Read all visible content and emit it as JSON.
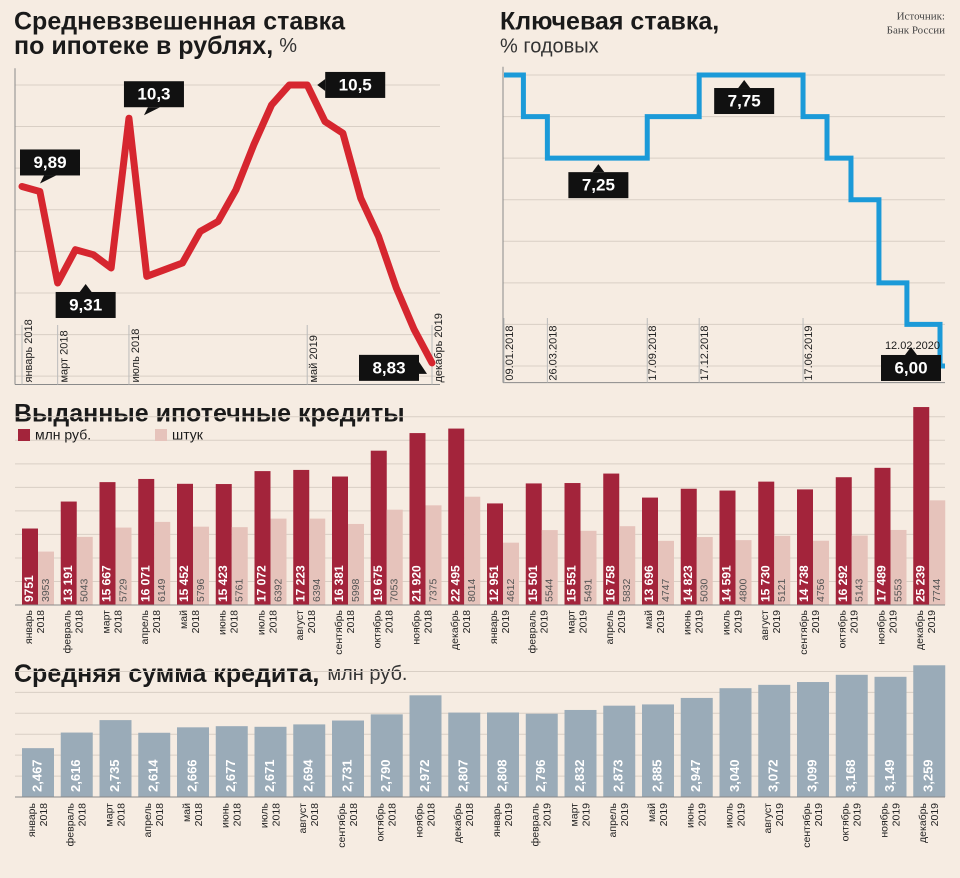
{
  "source": [
    "Источник:",
    "Банк России"
  ],
  "chart_data": [
    {
      "type": "line",
      "title": [
        "Средневзвешенная ставка",
        "по ипотеке в рублях,"
      ],
      "unit": "%",
      "categories": [
        "январь 2018",
        null,
        "март 2018",
        null,
        null,
        null,
        "июль 2018",
        null,
        null,
        null,
        null,
        null,
        null,
        null,
        null,
        null,
        "май 2019",
        null,
        null,
        null,
        null,
        null,
        null,
        "декабрь 2019"
      ],
      "values": [
        9.89,
        9.86,
        9.31,
        9.51,
        9.48,
        9.4,
        10.3,
        9.35,
        9.39,
        9.43,
        9.62,
        9.68,
        9.87,
        10.14,
        10.38,
        10.5,
        10.5,
        10.28,
        10.21,
        9.82,
        9.59,
        9.28,
        9.03,
        8.83
      ],
      "value_labels": [
        "9,89",
        null,
        "9,31",
        null,
        null,
        null,
        "10,3",
        null,
        null,
        null,
        null,
        null,
        null,
        null,
        null,
        null,
        "10,5",
        null,
        null,
        null,
        null,
        null,
        null,
        "8,83"
      ],
      "color": "#d6262f",
      "ylim": [
        8.7,
        10.6
      ],
      "yticks": [
        8.75,
        9.0,
        9.25,
        9.5,
        9.75,
        10.0,
        10.25,
        10.5
      ],
      "grid": true
    },
    {
      "type": "step",
      "title": "Ключевая ставка,",
      "subtitle": "% годовых",
      "x": [
        "09.01.2018",
        "12.02.2018",
        "26.03.2018",
        "17.09.2018",
        "17.12.2018",
        "17.06.2019",
        "29.07.2019",
        "09.09.2019",
        "28.10.2019",
        "16.12.2019",
        "12.02.2020"
      ],
      "values": [
        7.75,
        7.5,
        7.25,
        7.5,
        7.75,
        7.5,
        7.25,
        7.0,
        6.5,
        6.25,
        6.0
      ],
      "value_labels": [
        null,
        null,
        "7,25",
        null,
        "7,75",
        null,
        null,
        null,
        null,
        null,
        "6,00"
      ],
      "color": "#1b9ad8",
      "xlim": [
        "09.01.2018",
        "12.02.2020"
      ],
      "xticks": [
        "09.01.2018",
        "26.03.2018",
        "17.09.2018",
        "17.12.2018",
        "17.06.2019"
      ],
      "ylim": [
        5.9,
        7.8
      ],
      "yticks": [
        6.0,
        6.25,
        6.5,
        6.75,
        7.0,
        7.25,
        7.5,
        7.75
      ],
      "grid": true
    },
    {
      "type": "grouped_bar",
      "title": "Выданные ипотечные кредиты",
      "categories": [
        [
          "январь",
          "2018"
        ],
        [
          "февраль",
          "2018"
        ],
        [
          "март",
          "2018"
        ],
        [
          "апрель",
          "2018"
        ],
        [
          "май",
          "2018"
        ],
        [
          "июнь",
          "2018"
        ],
        [
          "июль",
          "2018"
        ],
        [
          "август",
          "2018"
        ],
        [
          "сентябрь",
          "2018"
        ],
        [
          "октябрь",
          "2018"
        ],
        [
          "ноябрь",
          "2018"
        ],
        [
          "декабрь",
          "2018"
        ],
        [
          "январь",
          "2019"
        ],
        [
          "февраль",
          "2019"
        ],
        [
          "март",
          "2019"
        ],
        [
          "апрель",
          "2019"
        ],
        [
          "май",
          "2019"
        ],
        [
          "июнь",
          "2019"
        ],
        [
          "июль",
          "2019"
        ],
        [
          "август",
          "2019"
        ],
        [
          "сентябрь",
          "2019"
        ],
        [
          "октябрь",
          "2019"
        ],
        [
          "ноябрь",
          "2019"
        ],
        [
          "декабрь",
          "2019"
        ]
      ],
      "series": [
        {
          "name": "млн руб.",
          "color": "#a3243b",
          "values": [
            9751,
            13191,
            15667,
            16071,
            15452,
            15423,
            17072,
            17223,
            16381,
            19675,
            21920,
            22495,
            12951,
            15501,
            15551,
            16758,
            13696,
            14823,
            14591,
            15730,
            14738,
            16292,
            17489,
            25239
          ],
          "value_labels": [
            "9751",
            "13 191",
            "15 667",
            "16 071",
            "15 452",
            "15 423",
            "17 072",
            "17 223",
            "16 381",
            "19 675",
            "21 920",
            "22 495",
            "12 951",
            "15 501",
            "15 551",
            "16 758",
            "13 696",
            "14 823",
            "14 591",
            "15 730",
            "14 738",
            "16 292",
            "17 489",
            "25 239"
          ]
        },
        {
          "name": "штук",
          "color": "#e6c3bb",
          "axis": "y2",
          "values": [
            3953,
            5043,
            5729,
            6149,
            5796,
            5761,
            6392,
            6394,
            5998,
            7053,
            7375,
            8014,
            4612,
            5544,
            5491,
            5832,
            4747,
            5030,
            4800,
            5121,
            4756,
            5143,
            5553,
            7744
          ]
        }
      ],
      "ylim": [
        0,
        25500
      ],
      "yticks": [
        0,
        3000,
        6000,
        9000,
        12000,
        15000,
        18000,
        21000,
        24000
      ],
      "grid": true,
      "y2lim": [
        0,
        14800
      ]
    },
    {
      "type": "bar",
      "title": "Средняя сумма кредита,",
      "unit": "млн руб.",
      "categories": [
        [
          "январь",
          "2018"
        ],
        [
          "февраль",
          "2018"
        ],
        [
          "март",
          "2018"
        ],
        [
          "апрель",
          "2018"
        ],
        [
          "май",
          "2018"
        ],
        [
          "июнь",
          "2018"
        ],
        [
          "июль",
          "2018"
        ],
        [
          "август",
          "2018"
        ],
        [
          "сентябрь",
          "2018"
        ],
        [
          "октябрь",
          "2018"
        ],
        [
          "ноябрь",
          "2018"
        ],
        [
          "декабрь",
          "2018"
        ],
        [
          "январь",
          "2019"
        ],
        [
          "февраль",
          "2019"
        ],
        [
          "март",
          "2019"
        ],
        [
          "апрель",
          "2019"
        ],
        [
          "май",
          "2019"
        ],
        [
          "июнь",
          "2019"
        ],
        [
          "июль",
          "2019"
        ],
        [
          "август",
          "2019"
        ],
        [
          "сентябрь",
          "2019"
        ],
        [
          "октябрь",
          "2019"
        ],
        [
          "ноябрь",
          "2019"
        ],
        [
          "декабрь",
          "2019"
        ]
      ],
      "values": [
        2.467,
        2.616,
        2.735,
        2.614,
        2.666,
        2.677,
        2.671,
        2.694,
        2.731,
        2.79,
        2.972,
        2.807,
        2.808,
        2.796,
        2.832,
        2.873,
        2.885,
        2.947,
        3.04,
        3.072,
        3.099,
        3.168,
        3.149,
        3.259
      ],
      "value_labels": [
        "2,467",
        "2,616",
        "2,735",
        "2,614",
        "2,666",
        "2,677",
        "2,671",
        "2,694",
        "2,731",
        "2,790",
        "2,972",
        "2,807",
        "2,808",
        "2,796",
        "2,832",
        "2,873",
        "2,885",
        "2,947",
        "3,040",
        "3,072",
        "3,099",
        "3,168",
        "3,149",
        "3,259"
      ],
      "color": "#9aabb8",
      "ylim": [
        2.0,
        3.3
      ],
      "yticks": [
        2.0,
        2.2,
        2.4,
        2.6,
        2.8,
        3.0,
        3.2
      ],
      "grid": true
    }
  ]
}
